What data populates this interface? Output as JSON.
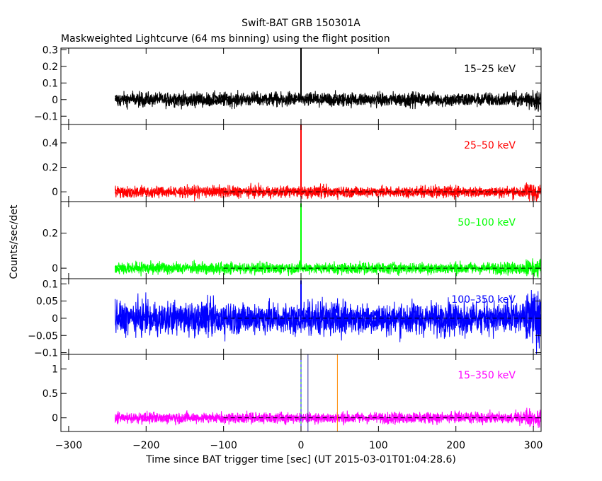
{
  "title": "Swift-BAT GRB 150301A",
  "subtitle": "Maskweighted Lightcurve (64 ms binning) using the flight position",
  "xlabel": "Time since BAT trigger time [sec] (UT 2015-03-01T01:04:28.6)",
  "ylabel": "Counts/sec/det",
  "chart_data": [
    {
      "type": "line",
      "series": [
        {
          "name": "15-25 keV",
          "color": "#000000"
        }
      ],
      "band_label": "15–25 keV",
      "xlim": [
        -310,
        310
      ],
      "ylim": [
        -0.15,
        0.31
      ],
      "yticks": [
        -0.1,
        0,
        0.1,
        0.2,
        0.3
      ],
      "ytick_labels": [
        "−0.1",
        "0",
        "0.1",
        "0.2",
        "0.3"
      ],
      "data_start": -240,
      "noise_amplitude": 0.045,
      "baseline": 0,
      "spikes": [
        {
          "x": 0,
          "y": 0.31
        }
      ],
      "ref_lines": []
    },
    {
      "type": "line",
      "series": [
        {
          "name": "25-50 keV",
          "color": "#ff0000"
        }
      ],
      "band_label": "25–50 keV",
      "xlim": [
        -310,
        310
      ],
      "ylim": [
        -0.08,
        0.55
      ],
      "yticks": [
        0,
        0.2,
        0.4
      ],
      "ytick_labels": [
        "0",
        "0.2",
        "0.4"
      ],
      "data_start": -240,
      "noise_amplitude": 0.05,
      "baseline": 0,
      "spikes": [
        {
          "x": 0,
          "y": 0.55
        }
      ],
      "ref_lines": []
    },
    {
      "type": "line",
      "series": [
        {
          "name": "50-100 keV",
          "color": "#00ff00"
        }
      ],
      "band_label": "50–100 keV",
      "xlim": [
        -310,
        310
      ],
      "ylim": [
        -0.06,
        0.38
      ],
      "yticks": [
        0,
        0.2
      ],
      "ytick_labels": [
        "0",
        "0.2"
      ],
      "data_start": -240,
      "noise_amplitude": 0.035,
      "baseline": 0,
      "spikes": [
        {
          "x": 0,
          "y": 0.37
        }
      ],
      "ref_lines": []
    },
    {
      "type": "line",
      "series": [
        {
          "name": "100-350 keV",
          "color": "#0000ff"
        }
      ],
      "band_label": "100–350 keV",
      "xlim": [
        -310,
        310
      ],
      "ylim": [
        -0.105,
        0.115
      ],
      "yticks": [
        -0.1,
        -0.05,
        0,
        0.05,
        0.1
      ],
      "ytick_labels": [
        "−0.1",
        "−0.05",
        "0",
        "0.05",
        "0.1"
      ],
      "data_start": -240,
      "noise_amplitude": 0.05,
      "baseline": 0,
      "spikes": [
        {
          "x": 0,
          "y": 0.11
        }
      ],
      "ref_lines": []
    },
    {
      "type": "line",
      "series": [
        {
          "name": "15-350 keV",
          "color": "#ff00ff"
        }
      ],
      "band_label": "15–350 keV",
      "xlim": [
        -310,
        310
      ],
      "ylim": [
        -0.28,
        1.3
      ],
      "yticks": [
        0,
        0.5,
        1
      ],
      "ytick_labels": [
        "0",
        "0.5",
        "1"
      ],
      "data_start": -240,
      "noise_amplitude": 0.12,
      "baseline": 0,
      "spikes": [],
      "ref_lines": [
        {
          "x": 0,
          "color": "#00aa00"
        },
        {
          "x": 0,
          "color": "#0000ff",
          "dashed": true
        },
        {
          "x": 9,
          "color": "#333399"
        },
        {
          "x": 47,
          "color": "#ff8800"
        }
      ]
    }
  ],
  "xticks": [
    -300,
    -200,
    -100,
    0,
    100,
    200,
    300
  ],
  "xtick_labels": [
    "−300",
    "−200",
    "−100",
    "0",
    "100",
    "200",
    "300"
  ],
  "colors": {
    "axis": "#000000",
    "dash": "#000000",
    "background": "#ffffff"
  },
  "grid": false
}
